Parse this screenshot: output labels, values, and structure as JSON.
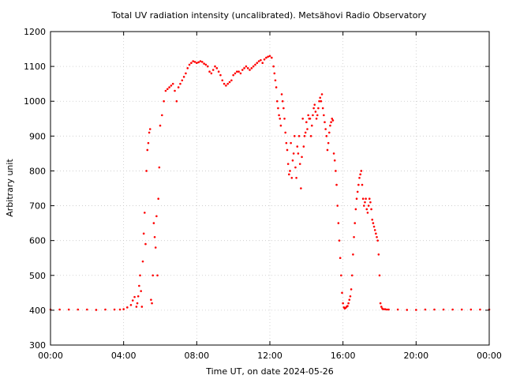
{
  "chart_data": {
    "type": "scatter",
    "title": "Total UV radiation intensity (uncalibrated). Metsähovi Radio Observatory",
    "xlabel": "Time UT, on date 2024-05-26",
    "ylabel": "Arbitrary unit",
    "xlim": [
      0,
      24
    ],
    "ylim": [
      300,
      1200
    ],
    "x_tick_values": [
      0,
      4,
      8,
      12,
      16,
      20,
      24
    ],
    "x_tick_labels": [
      "00:00",
      "04:00",
      "08:00",
      "12:00",
      "16:00",
      "20:00",
      "00:00"
    ],
    "y_tick_values": [
      300,
      400,
      500,
      600,
      700,
      800,
      900,
      1000,
      1100,
      1200
    ],
    "y_tick_labels": [
      "300",
      "400",
      "500",
      "600",
      "700",
      "800",
      "900",
      "1000",
      "1100",
      "1200"
    ],
    "grid": true,
    "marker_color": "#ff0000",
    "series": [
      {
        "x": [
          0,
          0.5,
          1,
          1.5,
          2,
          2.5,
          3,
          3.5,
          3.8,
          4.0,
          4.2,
          4.4,
          4.5,
          4.6,
          4.7,
          4.75,
          4.8,
          4.85,
          4.9,
          4.95,
          5.0,
          5.05,
          5.1,
          5.15,
          5.2,
          5.25,
          5.3,
          5.35,
          5.4,
          5.45,
          5.5,
          5.55,
          5.6,
          5.65,
          5.7,
          5.75,
          5.8,
          5.85,
          5.9,
          5.95,
          6.0,
          6.1,
          6.2,
          6.3,
          6.4,
          6.5,
          6.6,
          6.7,
          6.8,
          6.9,
          7.0,
          7.1,
          7.2,
          7.3,
          7.4,
          7.5,
          7.6,
          7.7,
          7.8,
          7.9,
          8.0,
          8.1,
          8.2,
          8.3,
          8.4,
          8.5,
          8.6,
          8.7,
          8.8,
          8.9,
          9.0,
          9.1,
          9.2,
          9.3,
          9.4,
          9.5,
          9.6,
          9.7,
          9.8,
          9.9,
          10.0,
          10.1,
          10.2,
          10.3,
          10.4,
          10.5,
          10.6,
          10.7,
          10.8,
          10.9,
          11.0,
          11.1,
          11.2,
          11.3,
          11.4,
          11.5,
          11.6,
          11.7,
          11.8,
          11.9,
          12.0,
          12.1,
          12.2,
          12.25,
          12.3,
          12.35,
          12.4,
          12.45,
          12.5,
          12.55,
          12.6,
          12.65,
          12.7,
          12.75,
          12.8,
          12.85,
          12.9,
          12.95,
          13.0,
          13.05,
          13.1,
          13.15,
          13.2,
          13.25,
          13.3,
          13.35,
          13.4,
          13.45,
          13.5,
          13.55,
          13.6,
          13.65,
          13.7,
          13.75,
          13.8,
          13.85,
          13.9,
          13.95,
          14.0,
          14.05,
          14.1,
          14.15,
          14.2,
          14.25,
          14.3,
          14.35,
          14.4,
          14.45,
          14.5,
          14.55,
          14.6,
          14.65,
          14.7,
          14.75,
          14.8,
          14.85,
          14.9,
          14.95,
          15.0,
          15.05,
          15.1,
          15.15,
          15.2,
          15.25,
          15.3,
          15.35,
          15.4,
          15.45,
          15.5,
          15.55,
          15.6,
          15.65,
          15.7,
          15.75,
          15.8,
          15.85,
          15.9,
          15.95,
          16.0,
          16.05,
          16.1,
          16.15,
          16.2,
          16.25,
          16.3,
          16.35,
          16.4,
          16.45,
          16.5,
          16.55,
          16.6,
          16.65,
          16.7,
          16.75,
          16.8,
          16.85,
          16.9,
          16.95,
          17.0,
          17.05,
          17.1,
          17.15,
          17.2,
          17.25,
          17.3,
          17.35,
          17.4,
          17.45,
          17.5,
          17.55,
          17.6,
          17.65,
          17.7,
          17.75,
          17.8,
          17.85,
          17.9,
          17.95,
          18.0,
          18.05,
          18.1,
          18.15,
          18.2,
          18.3,
          18.4,
          18.5,
          19,
          19.5,
          20,
          20.5,
          21,
          21.5,
          22,
          22.5,
          23,
          23.5,
          24
        ],
        "y": [
          402,
          402,
          402,
          402,
          402,
          401,
          402,
          402,
          402,
          403,
          408,
          415,
          428,
          438,
          410,
          420,
          440,
          470,
          500,
          455,
          410,
          540,
          620,
          680,
          590,
          800,
          860,
          880,
          910,
          920,
          430,
          420,
          500,
          650,
          610,
          580,
          670,
          500,
          720,
          810,
          930,
          960,
          1000,
          1030,
          1035,
          1040,
          1045,
          1050,
          1030,
          1000,
          1040,
          1050,
          1060,
          1070,
          1080,
          1095,
          1105,
          1110,
          1115,
          1113,
          1110,
          1112,
          1115,
          1113,
          1108,
          1105,
          1100,
          1085,
          1080,
          1090,
          1100,
          1095,
          1085,
          1075,
          1060,
          1050,
          1045,
          1050,
          1055,
          1060,
          1075,
          1080,
          1085,
          1085,
          1080,
          1090,
          1095,
          1100,
          1095,
          1090,
          1095,
          1100,
          1105,
          1110,
          1115,
          1118,
          1110,
          1120,
          1125,
          1128,
          1130,
          1125,
          1100,
          1080,
          1060,
          1040,
          1000,
          980,
          960,
          950,
          930,
          1020,
          1000,
          980,
          950,
          910,
          880,
          860,
          820,
          790,
          800,
          880,
          780,
          830,
          850,
          900,
          810,
          780,
          870,
          850,
          900,
          820,
          750,
          840,
          950,
          870,
          900,
          910,
          940,
          920,
          960,
          950,
          950,
          900,
          930,
          960,
          980,
          990,
          970,
          950,
          960,
          980,
          1000,
          1010,
          1000,
          1020,
          980,
          960,
          940,
          920,
          900,
          860,
          880,
          910,
          930,
          940,
          950,
          945,
          850,
          830,
          800,
          760,
          700,
          650,
          600,
          550,
          500,
          450,
          420,
          408,
          405,
          407,
          410,
          412,
          420,
          430,
          440,
          460,
          500,
          560,
          610,
          650,
          690,
          720,
          740,
          760,
          780,
          790,
          800,
          760,
          720,
          700,
          710,
          720,
          690,
          680,
          700,
          720,
          710,
          690,
          660,
          650,
          640,
          630,
          620,
          610,
          600,
          560,
          500,
          420,
          410,
          405,
          403,
          403,
          402,
          402,
          402,
          401,
          401,
          402,
          402,
          402,
          402,
          402,
          402,
          402,
          402
        ]
      }
    ]
  }
}
